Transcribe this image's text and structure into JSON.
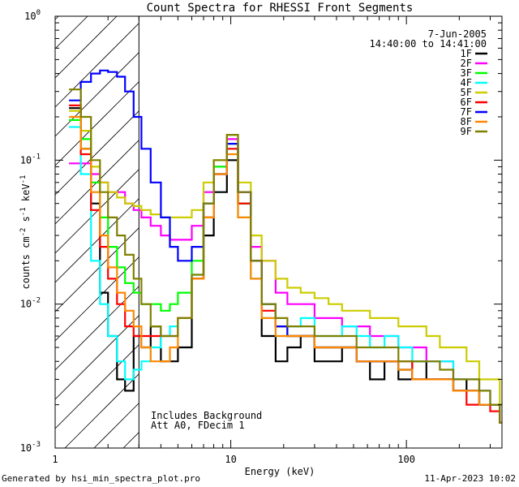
{
  "chart_data": {
    "type": "line",
    "title": "Count Spectra for RHESSI Front Segments",
    "xlabel": "Energy (keV)",
    "ylabel": "counts cm^-2 s^-1 keV^-1",
    "ylabel_parts": {
      "base": "counts cm",
      "exp1": "-2",
      "mid": " s",
      "exp2": "-1",
      "mid2": " keV",
      "exp3": "-1"
    },
    "xscale": "log",
    "yscale": "log",
    "xlim": [
      1,
      350
    ],
    "ylim": [
      0.001,
      1
    ],
    "x_ticks": [
      {
        "value": 1,
        "label": "1"
      },
      {
        "value": 10,
        "label": "10"
      },
      {
        "value": 100,
        "label": "100"
      }
    ],
    "y_ticks": [
      {
        "value": 1,
        "base": "10",
        "exp": "0"
      },
      {
        "value": 0.1,
        "base": "10",
        "exp": "-1"
      },
      {
        "value": 0.01,
        "base": "10",
        "exp": "-2"
      },
      {
        "value": 0.001,
        "base": "10",
        "exp": "-3"
      }
    ],
    "hatched_region": {
      "x_max": 3.0
    },
    "legend": {
      "position": "top-right",
      "date": "7-Jun-2005",
      "time_range": "14:40:00 to 14:41:00"
    },
    "annotation": [
      "Includes Background",
      "Att A0, FDecim 1"
    ],
    "series": [
      {
        "name": "1F",
        "color": "#000000",
        "values": [
          0.23,
          0.12,
          0.05,
          0.012,
          0.006,
          0.003,
          0.0025,
          0.006,
          0.005,
          0.007,
          0.004,
          0.004,
          0.005,
          0.015,
          0.03,
          0.06,
          0.1,
          0.05,
          0.02,
          0.006,
          0.004,
          0.005,
          0.006,
          0.004,
          0.004,
          0.005,
          0.004,
          0.003,
          0.004,
          0.003,
          0.004,
          0.003,
          0.003,
          0.003,
          0.0025,
          0.002,
          0.002,
          0.0015
        ]
      },
      {
        "name": "2F",
        "color": "#ff00ff",
        "values": [
          0.095,
          0.095,
          0.08,
          0.07,
          0.06,
          0.06,
          0.05,
          0.045,
          0.04,
          0.035,
          0.03,
          0.028,
          0.028,
          0.035,
          0.06,
          0.09,
          0.14,
          0.06,
          0.025,
          0.02,
          0.012,
          0.01,
          0.01,
          0.008,
          0.008,
          0.007,
          0.007,
          0.006,
          0.006,
          0.005,
          0.005,
          0.004,
          0.004,
          0.003,
          0.003,
          0.0025,
          0.002,
          0.0015
        ]
      },
      {
        "name": "3F",
        "color": "#00ff00",
        "values": [
          0.19,
          0.14,
          0.07,
          0.04,
          0.025,
          0.018,
          0.014,
          0.012,
          0.01,
          0.01,
          0.009,
          0.01,
          0.012,
          0.02,
          0.05,
          0.09,
          0.13,
          0.05,
          0.02,
          0.01,
          0.007,
          0.006,
          0.006,
          0.005,
          0.005,
          0.005,
          0.004,
          0.004,
          0.004,
          0.0035,
          0.003,
          0.003,
          0.003,
          0.0025,
          0.0025,
          0.002,
          0.002,
          0.0015
        ]
      },
      {
        "name": "4F",
        "color": "#00ffff",
        "values": [
          0.17,
          0.08,
          0.02,
          0.01,
          0.006,
          0.004,
          0.003,
          0.0035,
          0.004,
          0.005,
          0.006,
          0.007,
          0.008,
          0.016,
          0.04,
          0.08,
          0.12,
          0.04,
          0.015,
          0.008,
          0.006,
          0.007,
          0.008,
          0.006,
          0.006,
          0.007,
          0.006,
          0.005,
          0.006,
          0.005,
          0.004,
          0.004,
          0.004,
          0.003,
          0.003,
          0.0025,
          0.002,
          0.0015
        ]
      },
      {
        "name": "5F",
        "color": "#cccc00",
        "values": [
          0.22,
          0.16,
          0.09,
          0.07,
          0.06,
          0.055,
          0.05,
          0.048,
          0.045,
          0.042,
          0.04,
          0.04,
          0.04,
          0.045,
          0.07,
          0.1,
          0.15,
          0.07,
          0.03,
          0.02,
          0.015,
          0.013,
          0.012,
          0.011,
          0.01,
          0.009,
          0.009,
          0.008,
          0.008,
          0.007,
          0.007,
          0.006,
          0.005,
          0.005,
          0.004,
          0.003,
          0.003,
          0.002
        ]
      },
      {
        "name": "6F",
        "color": "#ff0000",
        "values": [
          0.24,
          0.11,
          0.045,
          0.025,
          0.015,
          0.01,
          0.007,
          0.006,
          0.006,
          0.006,
          0.006,
          0.006,
          0.008,
          0.015,
          0.04,
          0.08,
          0.12,
          0.05,
          0.02,
          0.009,
          0.007,
          0.006,
          0.006,
          0.005,
          0.005,
          0.005,
          0.004,
          0.004,
          0.004,
          0.004,
          0.003,
          0.003,
          0.003,
          0.0025,
          0.002,
          0.002,
          0.0018,
          0.0015
        ]
      },
      {
        "name": "7F",
        "color": "#0000ff",
        "values": [
          0.26,
          0.35,
          0.4,
          0.42,
          0.41,
          0.38,
          0.3,
          0.2,
          0.12,
          0.07,
          0.04,
          0.025,
          0.02,
          0.025,
          0.05,
          0.08,
          0.13,
          0.06,
          0.02,
          0.01,
          0.007,
          0.006,
          0.006,
          0.005,
          0.005,
          0.005,
          0.004,
          0.004,
          0.004,
          0.0035,
          0.003,
          0.003,
          0.003,
          0.0025,
          0.0025,
          0.002,
          0.002,
          0.0015
        ]
      },
      {
        "name": "8F",
        "color": "#ff8800",
        "values": [
          0.2,
          0.12,
          0.06,
          0.03,
          0.018,
          0.012,
          0.009,
          0.007,
          0.005,
          0.004,
          0.004,
          0.005,
          0.008,
          0.015,
          0.04,
          0.08,
          0.11,
          0.04,
          0.015,
          0.008,
          0.006,
          0.006,
          0.006,
          0.005,
          0.005,
          0.005,
          0.004,
          0.004,
          0.004,
          0.0035,
          0.003,
          0.003,
          0.003,
          0.0025,
          0.0025,
          0.002,
          0.002,
          0.0015
        ]
      },
      {
        "name": "9F",
        "color": "#808000",
        "values": [
          0.31,
          0.2,
          0.1,
          0.06,
          0.04,
          0.03,
          0.022,
          0.015,
          0.01,
          0.007,
          0.006,
          0.006,
          0.008,
          0.016,
          0.05,
          0.1,
          0.15,
          0.06,
          0.02,
          0.01,
          0.008,
          0.007,
          0.007,
          0.006,
          0.006,
          0.006,
          0.005,
          0.005,
          0.005,
          0.004,
          0.004,
          0.004,
          0.0035,
          0.003,
          0.003,
          0.0025,
          0.002,
          0.0015
        ]
      }
    ],
    "energy_edges": [
      1.2,
      1.4,
      1.6,
      1.8,
      2.0,
      2.25,
      2.5,
      2.8,
      3.1,
      3.5,
      4.0,
      4.5,
      5.0,
      6.0,
      7.0,
      8.0,
      9.5,
      11.0,
      13.0,
      15.0,
      18.0,
      21.0,
      25.0,
      30.0,
      36.0,
      43.0,
      52.0,
      62.0,
      75.0,
      90.0,
      108.0,
      130.0,
      155.0,
      185.0,
      220.0,
      260.0,
      300.0,
      340.0,
      350.0
    ]
  },
  "footer": {
    "generated_by": "Generated by hsi_min_spectra_plot.pro",
    "timestamp": "11-Apr-2023 10:02"
  }
}
